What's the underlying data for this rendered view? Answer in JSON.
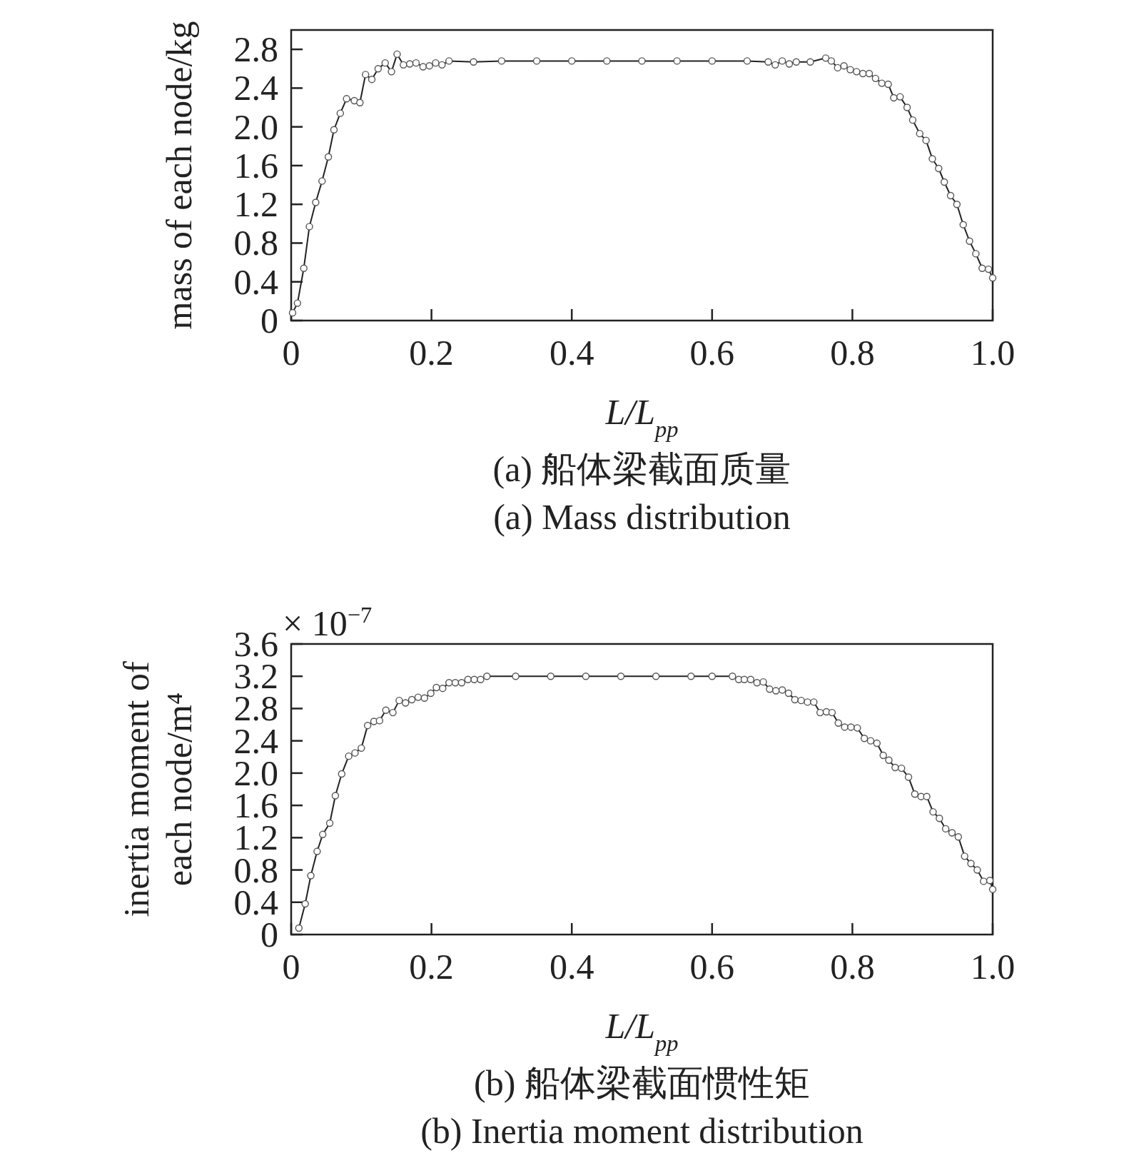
{
  "chart_data": [
    {
      "type": "line",
      "title": "(a) 船体梁截面质量",
      "subtitle": "(a) Mass distribution",
      "xlabel": "L/L$_{pp}$",
      "ylabel": "mass of each node/kg",
      "marker": "circle",
      "line_style": "solid",
      "grid": false,
      "xlim": [
        0,
        1
      ],
      "ylim": [
        0,
        3.0
      ],
      "xticks": [
        0,
        0.2,
        0.4,
        0.6,
        0.8,
        {
          "value": 1,
          "label": "1.0"
        }
      ],
      "yticks": [
        0,
        0.4,
        0.8,
        1.2,
        1.6,
        {
          "value": 2,
          "label": "2.0"
        },
        2.4,
        2.8
      ],
      "series": [
        {
          "color": "#222222",
          "x": [
            0.002,
            0.009,
            0.018,
            0.026,
            0.035,
            0.044,
            0.053,
            0.061,
            0.07,
            0.079,
            0.09,
            0.098,
            0.106,
            0.115,
            0.124,
            0.134,
            0.143,
            0.151,
            0.16,
            0.169,
            0.178,
            0.188,
            0.197,
            0.206,
            0.215,
            0.225,
            0.26,
            0.3,
            0.35,
            0.4,
            0.45,
            0.5,
            0.55,
            0.6,
            0.65,
            0.68,
            0.69,
            0.7,
            0.71,
            0.72,
            0.74,
            0.762,
            0.77,
            0.779,
            0.788,
            0.797,
            0.806,
            0.815,
            0.824,
            0.833,
            0.842,
            0.851,
            0.859,
            0.868,
            0.878,
            0.886,
            0.896,
            0.905,
            0.914,
            0.923,
            0.931,
            0.94,
            0.949,
            0.958,
            0.967,
            0.976,
            0.985,
            0.994,
            1.0
          ],
          "values": [
            0.08,
            0.18,
            0.54,
            0.97,
            1.22,
            1.44,
            1.69,
            1.97,
            2.14,
            2.29,
            2.27,
            2.25,
            2.54,
            2.49,
            2.6,
            2.66,
            2.57,
            2.75,
            2.64,
            2.65,
            2.66,
            2.62,
            2.63,
            2.66,
            2.64,
            2.68,
            2.67,
            2.68,
            2.68,
            2.68,
            2.68,
            2.68,
            2.68,
            2.68,
            2.68,
            2.67,
            2.64,
            2.68,
            2.65,
            2.67,
            2.67,
            2.71,
            2.68,
            2.61,
            2.63,
            2.59,
            2.57,
            2.55,
            2.55,
            2.5,
            2.45,
            2.44,
            2.3,
            2.31,
            2.2,
            2.07,
            1.93,
            1.86,
            1.67,
            1.57,
            1.43,
            1.29,
            1.2,
            0.99,
            0.82,
            0.69,
            0.54,
            0.53,
            0.44
          ]
        }
      ]
    },
    {
      "type": "line",
      "title": "(b) 船体梁截面惯性矩",
      "subtitle": "(b) Inertia moment distribution",
      "xlabel": "L/L$_{pp}$",
      "ylabel": "inertia moment of each node/m⁴",
      "marker": "circle",
      "line_style": "solid",
      "grid": false,
      "annotations": [
        "× 10$^{−7}$"
      ],
      "xlim": [
        0,
        1
      ],
      "ylim": [
        0,
        3.6
      ],
      "xticks": [
        0,
        0.2,
        0.4,
        0.6,
        0.8,
        {
          "value": 1,
          "label": "1.0"
        }
      ],
      "yticks": [
        0,
        0.4,
        0.8,
        1.2,
        1.6,
        {
          "value": 2,
          "label": "2.0"
        },
        2.4,
        2.8,
        3.2,
        3.6
      ],
      "series": [
        {
          "color": "#222222",
          "x": [
            0.011,
            0.02,
            0.028,
            0.037,
            0.045,
            0.055,
            0.063,
            0.072,
            0.082,
            0.091,
            0.1,
            0.109,
            0.118,
            0.126,
            0.135,
            0.145,
            0.154,
            0.163,
            0.172,
            0.181,
            0.19,
            0.199,
            0.207,
            0.216,
            0.225,
            0.234,
            0.243,
            0.252,
            0.261,
            0.27,
            0.279,
            0.32,
            0.37,
            0.42,
            0.47,
            0.52,
            0.57,
            0.6,
            0.629,
            0.638,
            0.646,
            0.655,
            0.664,
            0.673,
            0.682,
            0.691,
            0.7,
            0.709,
            0.718,
            0.727,
            0.736,
            0.745,
            0.754,
            0.763,
            0.771,
            0.78,
            0.789,
            0.798,
            0.807,
            0.817,
            0.826,
            0.835,
            0.844,
            0.852,
            0.861,
            0.87,
            0.88,
            0.889,
            0.898,
            0.906,
            0.915,
            0.924,
            0.933,
            0.942,
            0.951,
            0.96,
            0.969,
            0.978,
            0.987,
            0.996,
            1.0
          ],
          "values": [
            0.08,
            0.38,
            0.73,
            1.03,
            1.24,
            1.38,
            1.72,
            1.99,
            2.21,
            2.25,
            2.31,
            2.59,
            2.64,
            2.65,
            2.78,
            2.75,
            2.9,
            2.87,
            2.91,
            2.94,
            2.93,
            2.99,
            3.06,
            3.05,
            3.12,
            3.12,
            3.12,
            3.16,
            3.16,
            3.16,
            3.2,
            3.2,
            3.2,
            3.2,
            3.2,
            3.2,
            3.2,
            3.2,
            3.2,
            3.16,
            3.16,
            3.16,
            3.12,
            3.13,
            3.04,
            3.02,
            3.03,
            2.99,
            2.91,
            2.9,
            2.88,
            2.88,
            2.75,
            2.76,
            2.75,
            2.62,
            2.57,
            2.57,
            2.56,
            2.43,
            2.4,
            2.37,
            2.22,
            2.16,
            2.07,
            2.06,
            1.95,
            1.74,
            1.71,
            1.71,
            1.52,
            1.44,
            1.31,
            1.26,
            1.21,
            0.97,
            0.88,
            0.8,
            0.66,
            0.67,
            0.56
          ]
        }
      ]
    }
  ]
}
